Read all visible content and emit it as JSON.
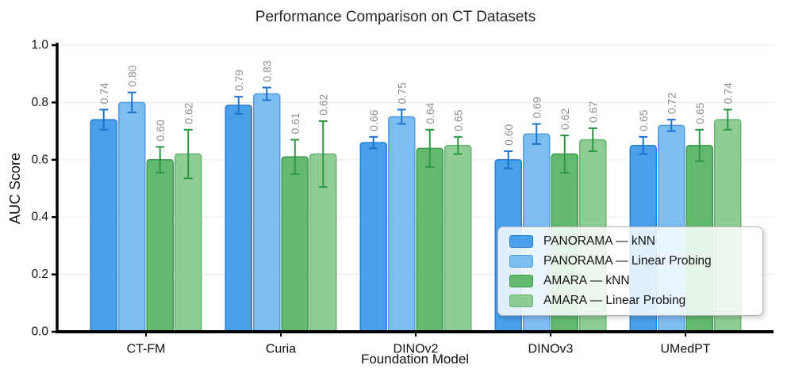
{
  "chart_data": {
    "type": "bar",
    "title": "Performance Comparison on CT Datasets",
    "xlabel": "Foundation Model",
    "ylabel": "AUC Score",
    "categories": [
      "CT-FM",
      "Curia",
      "DINOv2",
      "DINOv3",
      "UMedPT"
    ],
    "series": [
      {
        "name": "PANORAMA — kNN",
        "color": "#47a0e8",
        "edge_color": "#2a7fd4",
        "error_color": "#1e72cc",
        "values": [
          0.74,
          0.79,
          0.66,
          0.6,
          0.65
        ],
        "errors": [
          0.035,
          0.03,
          0.02,
          0.03,
          0.03
        ]
      },
      {
        "name": "PANORAMA — Linear Probing",
        "color": "#7cbdf2",
        "edge_color": "#549de4",
        "error_color": "#1e72cc",
        "values": [
          0.8,
          0.83,
          0.75,
          0.69,
          0.72
        ],
        "errors": [
          0.035,
          0.022,
          0.025,
          0.035,
          0.02
        ]
      },
      {
        "name": "AMARA — kNN",
        "color": "#63b96e",
        "edge_color": "#3c9a4c",
        "error_color": "#2e9643",
        "values": [
          0.6,
          0.61,
          0.64,
          0.62,
          0.65
        ],
        "errors": [
          0.045,
          0.06,
          0.065,
          0.065,
          0.055
        ]
      },
      {
        "name": "AMARA — Linear Probing",
        "color": "#90cd95",
        "edge_color": "#68b272",
        "error_color": "#2e9643",
        "values": [
          0.62,
          0.62,
          0.65,
          0.67,
          0.74
        ],
        "errors": [
          0.085,
          0.115,
          0.03,
          0.04,
          0.035
        ]
      }
    ],
    "ylim": [
      0.0,
      1.0
    ],
    "yticks": [
      "0.0",
      "0.2",
      "0.4",
      "0.6",
      "0.8",
      "1.0"
    ],
    "grid": true,
    "value_label_format": "0.2f",
    "value_label_rotation": 90,
    "value_label_color": "#8f8f8f",
    "legend_position": "lower right inside"
  }
}
